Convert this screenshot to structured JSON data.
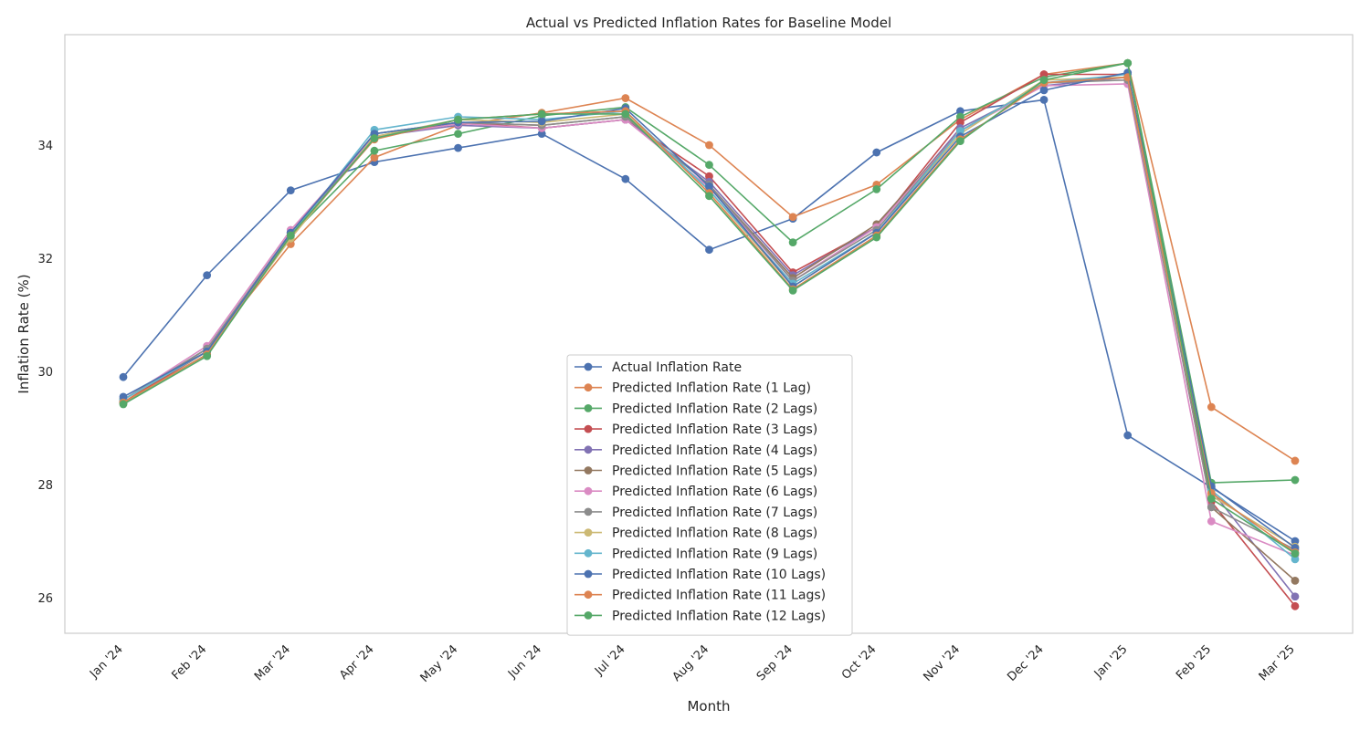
{
  "chart_data": {
    "type": "line",
    "title": "Actual vs Predicted Inflation Rates for Baseline Model",
    "xlabel": "Month",
    "ylabel": "Inflation Rate (%)",
    "categories": [
      "Jan '24",
      "Feb '24",
      "Mar '24",
      "Apr '24",
      "May '24",
      "Jun '24",
      "Jul '24",
      "Aug '24",
      "Sep '24",
      "Oct '24",
      "Nov '24",
      "Dec '24",
      "Jan '25",
      "Feb '25",
      "Mar '25"
    ],
    "yticks": [
      "26",
      "28",
      "30",
      "32",
      "34"
    ],
    "ylim": [
      25.35,
      35.9
    ],
    "grid": false,
    "legend_position": "lower center",
    "series": [
      {
        "name": "Actual Inflation Rate",
        "color": "#4c72b0",
        "values": [
          29.9,
          31.7,
          33.2,
          33.7,
          33.95,
          34.2,
          33.4,
          32.15,
          32.7,
          33.87,
          34.6,
          34.8,
          28.87,
          27.95,
          27.0
        ]
      },
      {
        "name": "Predicted Inflation Rate (1 Lag)",
        "color": "#dd8452",
        "values": [
          29.45,
          30.4,
          32.25,
          33.78,
          34.35,
          34.57,
          34.83,
          34.0,
          32.73,
          33.3,
          34.45,
          35.25,
          35.45,
          29.37,
          28.42
        ]
      },
      {
        "name": "Predicted Inflation Rate (2 Lags)",
        "color": "#55a868",
        "values": [
          29.45,
          30.3,
          32.4,
          33.9,
          34.2,
          34.52,
          34.67,
          33.65,
          32.28,
          33.22,
          34.5,
          35.2,
          35.45,
          28.03,
          28.08
        ]
      },
      {
        "name": "Predicted Inflation Rate (3 Lags)",
        "color": "#c44e52",
        "values": [
          29.45,
          30.35,
          32.45,
          34.15,
          34.4,
          34.3,
          34.45,
          33.45,
          31.75,
          32.55,
          34.4,
          35.25,
          35.25,
          27.7,
          25.85
        ]
      },
      {
        "name": "Predicted Inflation Rate (4 Lags)",
        "color": "#8172b3",
        "values": [
          29.5,
          30.4,
          32.45,
          34.15,
          34.35,
          34.3,
          34.45,
          33.35,
          31.7,
          32.55,
          34.3,
          35.05,
          35.2,
          27.9,
          26.02
        ]
      },
      {
        "name": "Predicted Inflation Rate (5 Lags)",
        "color": "#937860",
        "values": [
          29.5,
          30.35,
          32.45,
          34.2,
          34.4,
          34.35,
          34.5,
          33.3,
          31.65,
          32.6,
          34.25,
          35.1,
          35.2,
          27.6,
          26.3
        ]
      },
      {
        "name": "Predicted Inflation Rate (6 Lags)",
        "color": "#da8bc3",
        "values": [
          29.5,
          30.45,
          32.5,
          34.15,
          34.38,
          34.3,
          34.45,
          33.25,
          31.6,
          32.55,
          34.25,
          35.05,
          35.08,
          27.35,
          26.75
        ]
      },
      {
        "name": "Predicted Inflation Rate (7 Lags)",
        "color": "#8c8c8c",
        "values": [
          29.5,
          30.4,
          32.45,
          34.2,
          34.4,
          34.35,
          34.5,
          33.3,
          31.6,
          32.5,
          34.25,
          35.1,
          35.15,
          27.6,
          26.85
        ]
      },
      {
        "name": "Predicted Inflation Rate (8 Lags)",
        "color": "#ccb974",
        "values": [
          29.5,
          30.35,
          32.35,
          34.15,
          34.45,
          34.4,
          34.55,
          33.2,
          31.5,
          32.45,
          34.2,
          35.15,
          35.2,
          27.8,
          26.9
        ]
      },
      {
        "name": "Predicted Inflation Rate (9 Lags)",
        "color": "#64b5cd",
        "values": [
          29.5,
          30.35,
          32.4,
          34.27,
          34.5,
          34.45,
          34.6,
          33.2,
          31.55,
          32.45,
          34.25,
          35.1,
          35.25,
          27.9,
          26.68
        ]
      },
      {
        "name": "Predicted Inflation Rate (10 Lags)",
        "color": "#4c72b0",
        "values": [
          29.55,
          30.35,
          32.45,
          34.2,
          34.4,
          34.42,
          34.65,
          33.27,
          31.5,
          32.45,
          34.15,
          34.97,
          35.28,
          27.97,
          26.88
        ]
      },
      {
        "name": "Predicted Inflation Rate (11 Lags)",
        "color": "#dd8452",
        "values": [
          29.45,
          30.3,
          32.4,
          34.1,
          34.45,
          34.55,
          34.6,
          33.15,
          31.45,
          32.4,
          34.1,
          35.1,
          35.2,
          27.85,
          26.8
        ]
      },
      {
        "name": "Predicted Inflation Rate (12 Lags)",
        "color": "#55a868",
        "values": [
          29.42,
          30.27,
          32.4,
          34.12,
          34.45,
          34.55,
          34.55,
          33.1,
          31.43,
          32.37,
          34.07,
          35.15,
          35.45,
          27.75,
          26.78
        ]
      }
    ]
  }
}
